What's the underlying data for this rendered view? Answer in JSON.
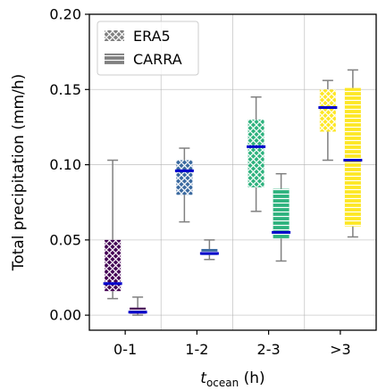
{
  "chart_data": {
    "type": "box",
    "categories": [
      "0-1",
      "1-2",
      "2-3",
      ">3"
    ],
    "ylabel": "Total precipitation (mm/h)",
    "xlabel": {
      "main": "t",
      "sub": "ocean",
      "unit": " (h)"
    },
    "ylim": [
      -0.01,
      0.2
    ],
    "yticks": [
      0.0,
      0.05,
      0.1,
      0.15,
      0.2
    ],
    "ytick_labels": [
      "0.00",
      "0.05",
      "0.10",
      "0.15",
      "0.20"
    ],
    "grid": true,
    "legend_position": "top-left",
    "category_colors": [
      "#440154",
      "#3b6aa0",
      "#2db27d",
      "#fde725"
    ],
    "median_color": "#0000cc",
    "series": [
      {
        "name": "ERA5",
        "pattern": "crosshatch",
        "boxes": [
          {
            "whisker_low": 0.011,
            "q1": 0.016,
            "median": 0.021,
            "q3": 0.05,
            "whisker_high": 0.103
          },
          {
            "whisker_low": 0.062,
            "q1": 0.08,
            "median": 0.096,
            "q3": 0.103,
            "whisker_high": 0.111
          },
          {
            "whisker_low": 0.069,
            "q1": 0.085,
            "median": 0.112,
            "q3": 0.13,
            "whisker_high": 0.145
          },
          {
            "whisker_low": 0.103,
            "q1": 0.122,
            "median": 0.138,
            "q3": 0.15,
            "whisker_high": 0.156
          }
        ]
      },
      {
        "name": "CARRA",
        "pattern": "horizontal",
        "boxes": [
          {
            "whisker_low": 0.0,
            "q1": 0.001,
            "median": 0.002,
            "q3": 0.005,
            "whisker_high": 0.012
          },
          {
            "whisker_low": 0.037,
            "q1": 0.04,
            "median": 0.041,
            "q3": 0.044,
            "whisker_high": 0.05
          },
          {
            "whisker_low": 0.036,
            "q1": 0.051,
            "median": 0.055,
            "q3": 0.084,
            "whisker_high": 0.094
          },
          {
            "whisker_low": 0.052,
            "q1": 0.059,
            "median": 0.103,
            "q3": 0.151,
            "whisker_high": 0.163
          }
        ]
      }
    ]
  }
}
